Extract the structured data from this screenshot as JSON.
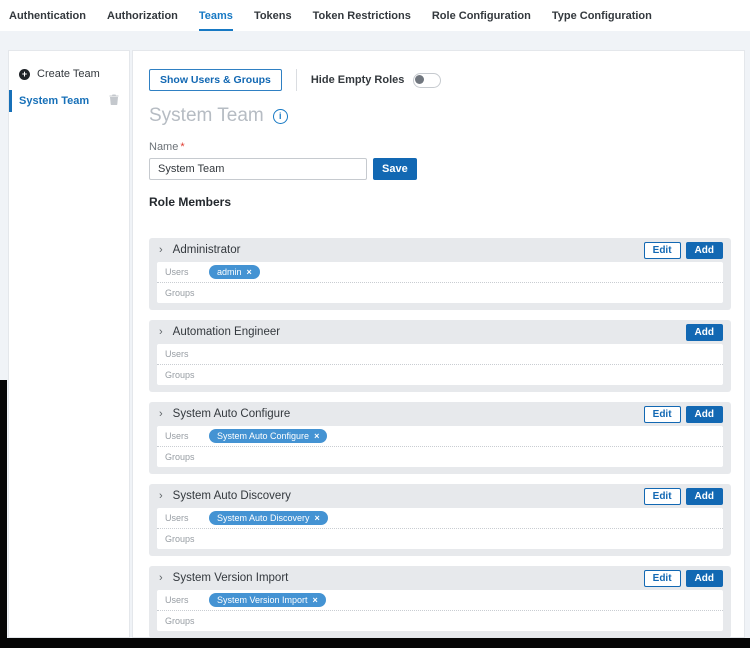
{
  "tabs": {
    "items": [
      {
        "label": "Authentication",
        "active": false
      },
      {
        "label": "Authorization",
        "active": false
      },
      {
        "label": "Teams",
        "active": true
      },
      {
        "label": "Tokens",
        "active": false
      },
      {
        "label": "Token Restrictions",
        "active": false
      },
      {
        "label": "Role Configuration",
        "active": false
      },
      {
        "label": "Type Configuration",
        "active": false
      }
    ]
  },
  "sidebar": {
    "create_team_label": "Create Team",
    "teams": [
      {
        "name": "System Team",
        "active": true,
        "deletable": true
      }
    ]
  },
  "toolbar": {
    "show_users_groups_label": "Show Users & Groups",
    "hide_empty_roles_label": "Hide Empty Roles",
    "hide_empty_roles_state": "off"
  },
  "page": {
    "title": "System Team"
  },
  "name_form": {
    "label": "Name",
    "required_marker": "*",
    "value": "System Team",
    "save_label": "Save"
  },
  "role_members": {
    "heading": "Role Members",
    "labels": {
      "users": "Users",
      "groups": "Groups",
      "edit": "Edit",
      "add": "Add",
      "chip_remove_glyph": "×"
    },
    "panels": [
      {
        "title": "Administrator",
        "has_edit": true,
        "users": [
          "admin"
        ],
        "groups": []
      },
      {
        "title": "Automation Engineer",
        "has_edit": false,
        "users": [],
        "groups": []
      },
      {
        "title": "System Auto Configure",
        "has_edit": true,
        "users": [
          "System Auto Configure"
        ],
        "groups": []
      },
      {
        "title": "System Auto Discovery",
        "has_edit": true,
        "users": [
          "System Auto Discovery"
        ],
        "groups": []
      },
      {
        "title": "System Version Import",
        "has_edit": true,
        "users": [
          "System Version Import"
        ],
        "groups": []
      }
    ]
  },
  "icons": {
    "chevron_glyph": "›",
    "info_glyph": "i",
    "plus_glyph": "+"
  },
  "colors": {
    "primary_blue": "#1268b3",
    "tab_active_blue": "#1779c4",
    "chip_blue": "#4493d3",
    "required_red": "#e03c31",
    "panel_gray": "#e7e9ec",
    "page_background": "#f0f3f7"
  }
}
